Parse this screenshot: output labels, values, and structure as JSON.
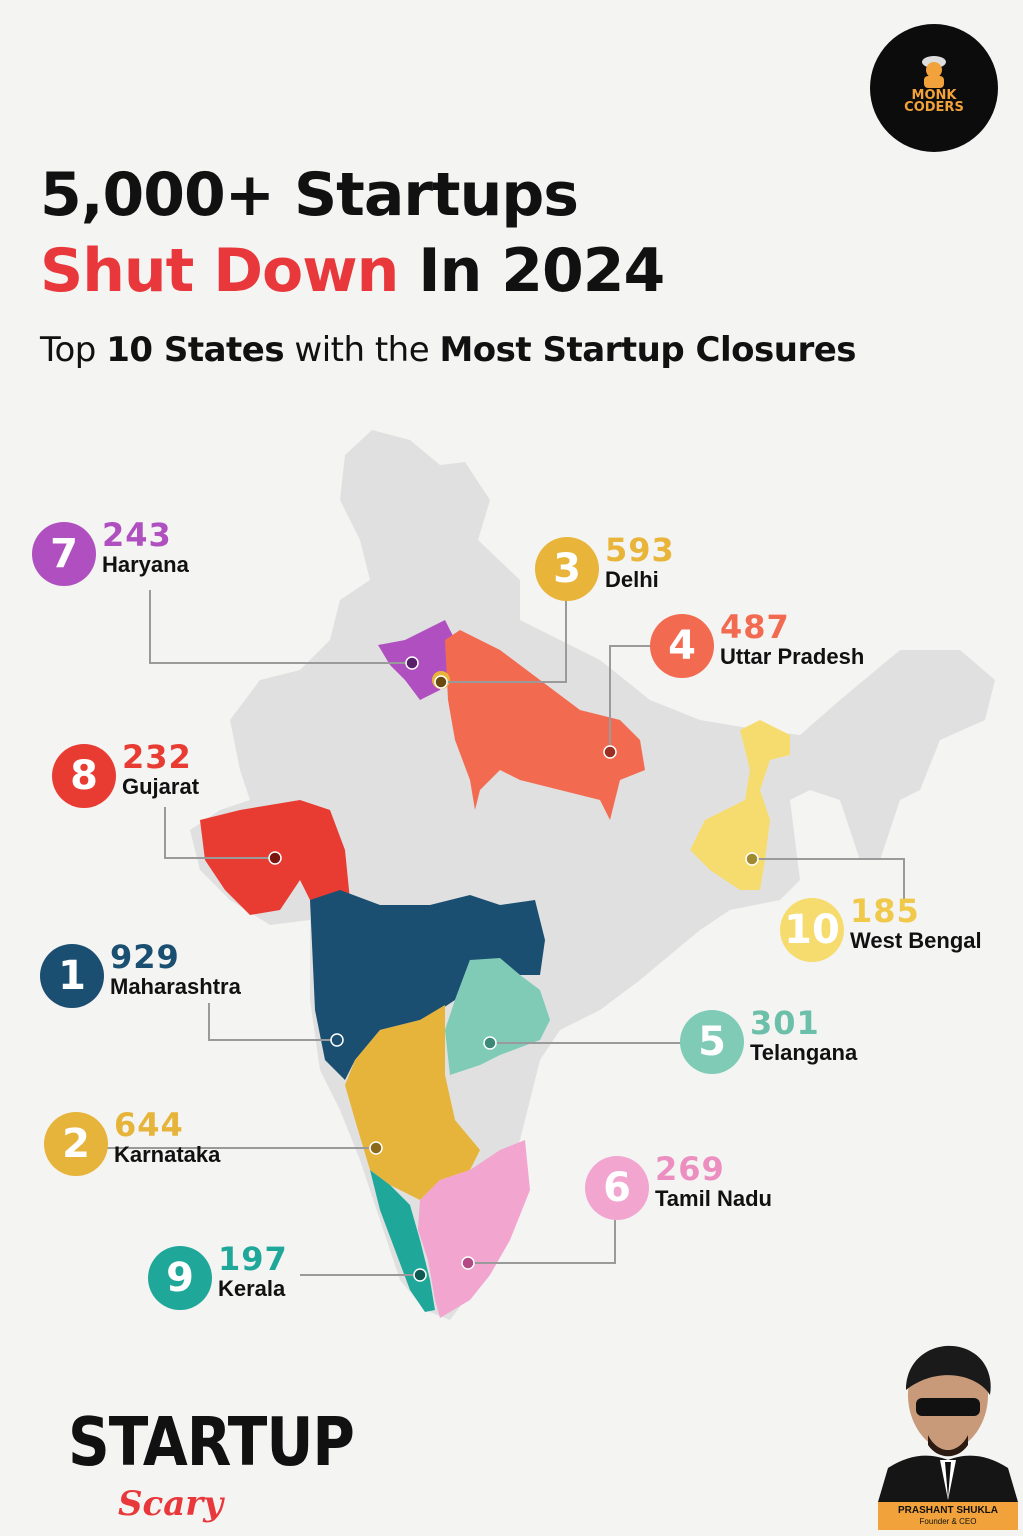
{
  "title": {
    "line1": "5,000+ Startups",
    "line2_highlight": "Shut Down",
    "line2_rest": " In 2024"
  },
  "subtitle": {
    "part1": "Top ",
    "bold1": "10 States",
    "part2": " with the ",
    "bold2": "Most Startup Closures"
  },
  "brand_badge": {
    "line1": "MONK",
    "line2": "CODERS"
  },
  "colors": {
    "background": "#f4f4f3",
    "map_base": "#e0e0e0",
    "title_red": "#e8383b",
    "leader_line": "#9a9a9a"
  },
  "states": [
    {
      "rank": "1",
      "value": "929",
      "name": "Maharashtra",
      "color": "#1b4f72"
    },
    {
      "rank": "2",
      "value": "644",
      "name": "Karnataka",
      "color": "#e6b43a"
    },
    {
      "rank": "3",
      "value": "593",
      "name": "Delhi",
      "color": "#e8b43a"
    },
    {
      "rank": "4",
      "value": "487",
      "name": "Uttar Pradesh",
      "color": "#f26b50"
    },
    {
      "rank": "5",
      "value": "301",
      "name": "Telangana",
      "color": "#7fcbb6"
    },
    {
      "rank": "6",
      "value": "269",
      "name": "Tamil Nadu",
      "color": "#f2a6cf"
    },
    {
      "rank": "7",
      "value": "243",
      "name": "Haryana",
      "color": "#b04fc0"
    },
    {
      "rank": "8",
      "value": "232",
      "name": "Gujarat",
      "color": "#e83c33"
    },
    {
      "rank": "9",
      "value": "197",
      "name": "Kerala",
      "color": "#1fa89a"
    },
    {
      "rank": "10",
      "value": "185",
      "name": "West Bengal",
      "color": "#f6dc6e"
    }
  ],
  "footer": {
    "logo_top": "STARTUP",
    "logo_bottom": "Scary",
    "founder_name": "PRASHANT SHUKLA",
    "founder_role": "Founder & CEO"
  }
}
